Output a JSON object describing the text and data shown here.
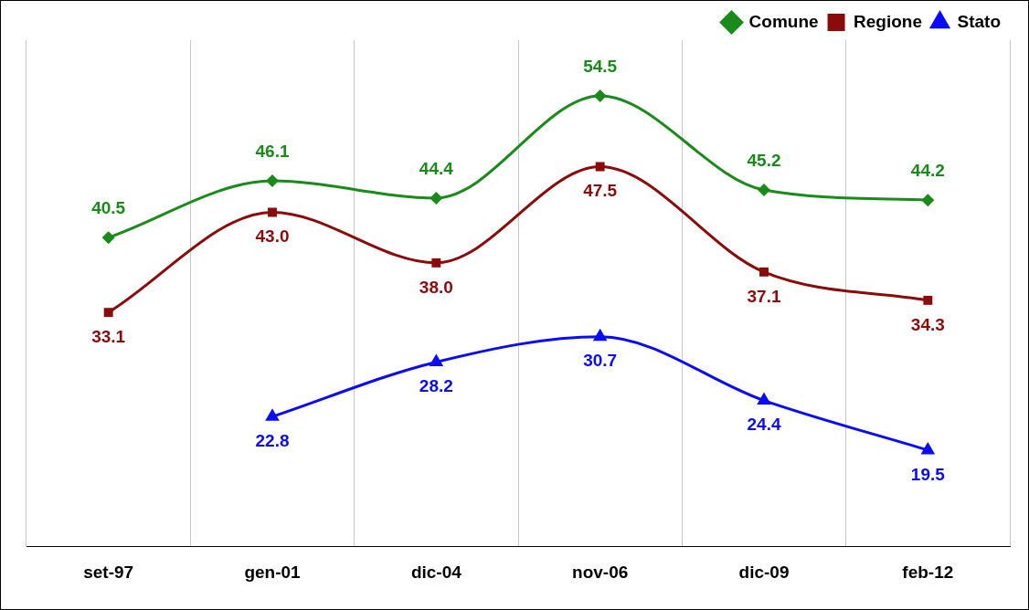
{
  "chart_data": {
    "type": "line",
    "categories": [
      "set-97",
      "gen-01",
      "dic-04",
      "nov-06",
      "dic-09",
      "feb-12"
    ],
    "series": [
      {
        "name": "Comune",
        "color": "#1a8a1a",
        "marker": "diamond",
        "values": [
          40.5,
          46.1,
          44.4,
          54.5,
          45.2,
          44.2
        ],
        "value_labels": [
          "40.5",
          "46.1",
          "44.4",
          "54.5",
          "45.2",
          "44.2"
        ]
      },
      {
        "name": "Regione",
        "color": "#8b0a0a",
        "marker": "square",
        "values": [
          33.1,
          43.0,
          38.0,
          47.5,
          37.1,
          34.3
        ],
        "value_labels": [
          "33.1",
          "43.0",
          "38.0",
          "47.5",
          "37.1",
          "34.3"
        ]
      },
      {
        "name": "Stato",
        "color": "#0a0aff",
        "marker": "triangle",
        "values": [
          null,
          22.8,
          28.2,
          30.7,
          24.4,
          19.5
        ],
        "value_labels": [
          null,
          "22.8",
          "28.2",
          "30.7",
          "24.4",
          "19.5"
        ]
      }
    ],
    "ylim": [
      10,
      60
    ],
    "tick_labels": "x",
    "grid": "x",
    "legend": "top right",
    "line_style": "solid"
  }
}
